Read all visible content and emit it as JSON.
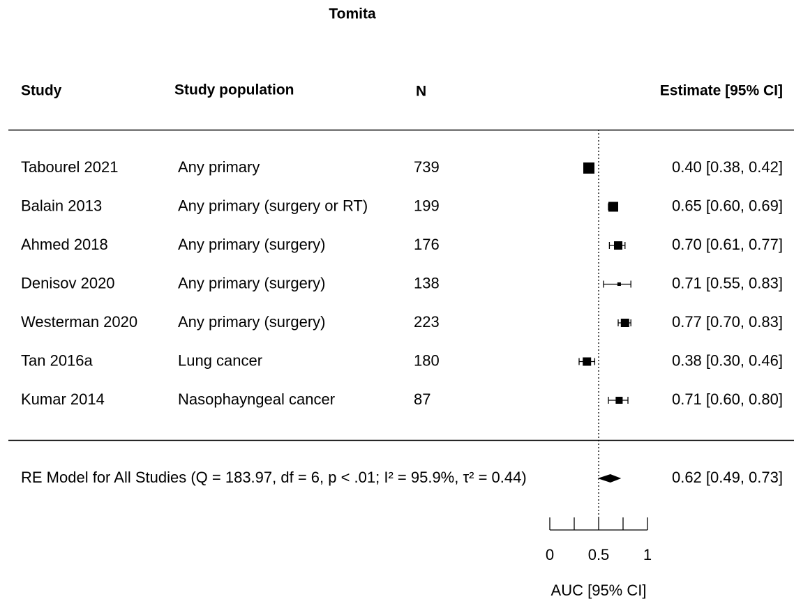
{
  "chart_data": {
    "type": "forest",
    "title": "Tomita",
    "headers": [
      "Study",
      "Study population",
      "N",
      "Estimate [95% CI]"
    ],
    "studies": [
      "Tabourel 2021",
      "Balain 2013",
      "Ahmed 2018",
      "Denisov 2020",
      "Westerman 2020",
      "Tan 2016a",
      "Kumar 2014"
    ],
    "populations": [
      "Any primary",
      "Any primary (surgery or RT)",
      "Any primary (surgery)",
      "Any primary (surgery)",
      "Any primary (surgery)",
      "Lung cancer",
      "Nasophayngeal cancer"
    ],
    "n": [
      739,
      199,
      176,
      138,
      223,
      180,
      87
    ],
    "estimates": [
      0.4,
      0.65,
      0.7,
      0.71,
      0.77,
      0.38,
      0.71
    ],
    "ci_lower": [
      0.38,
      0.6,
      0.61,
      0.55,
      0.7,
      0.3,
      0.6
    ],
    "ci_upper": [
      0.42,
      0.69,
      0.77,
      0.83,
      0.83,
      0.46,
      0.8
    ],
    "value_labels": [
      "0.40 [0.38, 0.42]",
      "0.65 [0.60, 0.69]",
      "0.70 [0.61, 0.77]",
      "0.71 [0.55, 0.83]",
      "0.77 [0.70, 0.83]",
      "0.38 [0.30, 0.46]",
      "0.71 [0.60, 0.80]"
    ],
    "weights": [
      16,
      12.3,
      9,
      1.6,
      9,
      9,
      6.3
    ],
    "summary": {
      "label": "RE Model for All Studies (Q = 183.97, df = 6, p < .01; I² = 95.9%, τ² = 0.44)",
      "estimate": 0.62,
      "ci_lower": 0.49,
      "ci_upper": 0.73,
      "value_label": "0.62 [0.49, 0.73]"
    },
    "refline": 0.5,
    "xlim": [
      0,
      1
    ],
    "xticks": [
      0,
      0.5,
      1
    ],
    "xminorticks": [
      0.25,
      0.75
    ],
    "xlabel": "AUC [95% CI]",
    "color": "#000000"
  }
}
